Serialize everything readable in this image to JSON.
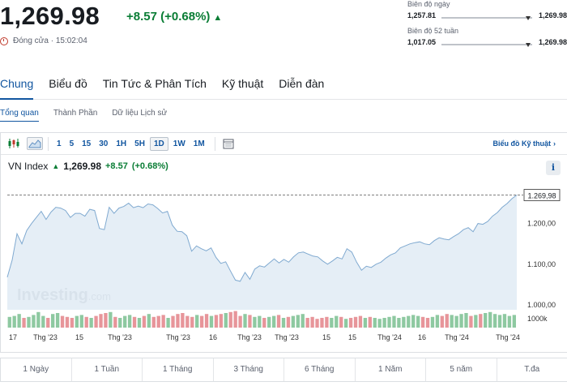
{
  "quote": {
    "price": "1,269.98",
    "change": "+8.57 (+0.68%)",
    "status": "Đóng cửa · 15:02:04"
  },
  "day_range": {
    "label": "Biên độ ngày",
    "low": "1,257.81",
    "high": "1,269.98"
  },
  "year_range": {
    "label": "Biên độ 52 tuần",
    "low": "1,017.05",
    "high": "1,269.98"
  },
  "main_tabs": [
    "Chung",
    "Biểu đồ",
    "Tin Tức & Phân Tích",
    "Kỹ thuật",
    "Diễn đàn"
  ],
  "sub_tabs": [
    "Tổng quan",
    "Thành Phần",
    "Dữ liệu Lịch sử"
  ],
  "toolbar": {
    "periods": [
      "1",
      "5",
      "15",
      "30",
      "1H",
      "5H",
      "1D",
      "1W",
      "1M"
    ],
    "active_period": "1D",
    "link": "Biểu đồ Kỹ thuật",
    "icons": [
      "candlestick-icon",
      "area-chart-icon",
      "calendar-icon"
    ]
  },
  "legend": {
    "name": "VN Index",
    "last": "1,269.98",
    "change": "+8.57",
    "pct": "(+0.68%)"
  },
  "watermark": {
    "brand": "Investing",
    "suffix": ".com"
  },
  "colors": {
    "accent": "#1256a0",
    "up": "#0a7d35",
    "area_fill": "#dce8f3",
    "area_line": "#7fa9d0"
  },
  "chart_data": {
    "type": "area",
    "series": [
      {
        "values": [
          1068,
          1110,
          1175,
          1150,
          1183,
          1200,
          1215,
          1230,
          1210,
          1228,
          1240,
          1238,
          1232,
          1215,
          1225,
          1225,
          1218,
          1235,
          1232,
          1188,
          1185,
          1240,
          1225,
          1238,
          1242,
          1250,
          1239,
          1243,
          1239,
          1248,
          1246,
          1237,
          1226,
          1230,
          1196,
          1181,
          1180,
          1170,
          1132,
          1145,
          1138,
          1133,
          1140,
          1117,
          1102,
          1106,
          1083,
          1061,
          1058,
          1080,
          1063,
          1088,
          1096,
          1093,
          1103,
          1113,
          1103,
          1112,
          1105,
          1118,
          1128,
          1130,
          1125,
          1120,
          1118,
          1108,
          1100,
          1108,
          1117,
          1113,
          1138,
          1130,
          1105,
          1085,
          1095,
          1092,
          1100,
          1105,
          1115,
          1123,
          1128,
          1140,
          1145,
          1150,
          1153,
          1155,
          1150,
          1148,
          1158,
          1165,
          1162,
          1160,
          1168,
          1175,
          1185,
          1190,
          1180,
          1200,
          1198,
          1205,
          1218,
          1227,
          1240,
          1249,
          1261,
          1269.98
        ]
      }
    ],
    "y_ticks": [
      "1.000,00",
      "1.100,00",
      "1.200,00"
    ],
    "y_tick_values": [
      1000,
      1100,
      1200
    ],
    "last_label": "1.269,98",
    "last_value": 1269.98,
    "ylim": [
      1000,
      1275
    ],
    "x_labels": [
      "17",
      "Thg '23",
      "15",
      "Thg '23",
      "15",
      "Thg '23",
      "16",
      "Thg '23",
      "15",
      "Thg '23",
      "15",
      "Thg '24",
      "16",
      "Thg '24",
      "15",
      "Thg '24"
    ],
    "volume_label": "1000k",
    "volume_values": [
      0.55,
      0.6,
      0.7,
      0.5,
      0.55,
      0.65,
      0.8,
      0.6,
      0.5,
      0.7,
      0.75,
      0.6,
      0.55,
      0.5,
      0.6,
      0.65,
      0.55,
      0.5,
      0.6,
      0.7,
      0.75,
      0.8,
      0.55,
      0.5,
      0.6,
      0.65,
      0.55,
      0.5,
      0.6,
      0.7,
      0.55,
      0.6,
      0.65,
      0.5,
      0.6,
      0.7,
      0.75,
      0.6,
      0.55,
      0.65,
      0.6,
      0.7,
      0.6,
      0.65,
      0.7,
      0.75,
      0.8,
      0.85,
      0.6,
      0.7,
      0.65,
      0.55,
      0.6,
      0.5,
      0.55,
      0.6,
      0.65,
      0.5,
      0.55,
      0.6,
      0.65,
      0.7,
      0.5,
      0.55,
      0.45,
      0.5,
      0.55,
      0.5,
      0.6,
      0.55,
      0.45,
      0.5,
      0.55,
      0.6,
      0.5,
      0.55,
      0.5,
      0.45,
      0.5,
      0.55,
      0.6,
      0.5,
      0.55,
      0.6,
      0.65,
      0.6,
      0.55,
      0.5,
      0.55,
      0.65,
      0.6,
      0.7,
      0.65,
      0.6,
      0.7,
      0.75,
      0.6,
      0.65,
      0.7,
      0.75,
      0.8,
      0.7,
      0.65,
      0.7,
      0.6,
      0.65
    ],
    "grid": false
  },
  "range_buttons": [
    "1 Ngày",
    "1 Tuần",
    "1 Tháng",
    "3 Tháng",
    "6 Tháng",
    "1 Năm",
    "5 năm",
    "T.đa"
  ]
}
